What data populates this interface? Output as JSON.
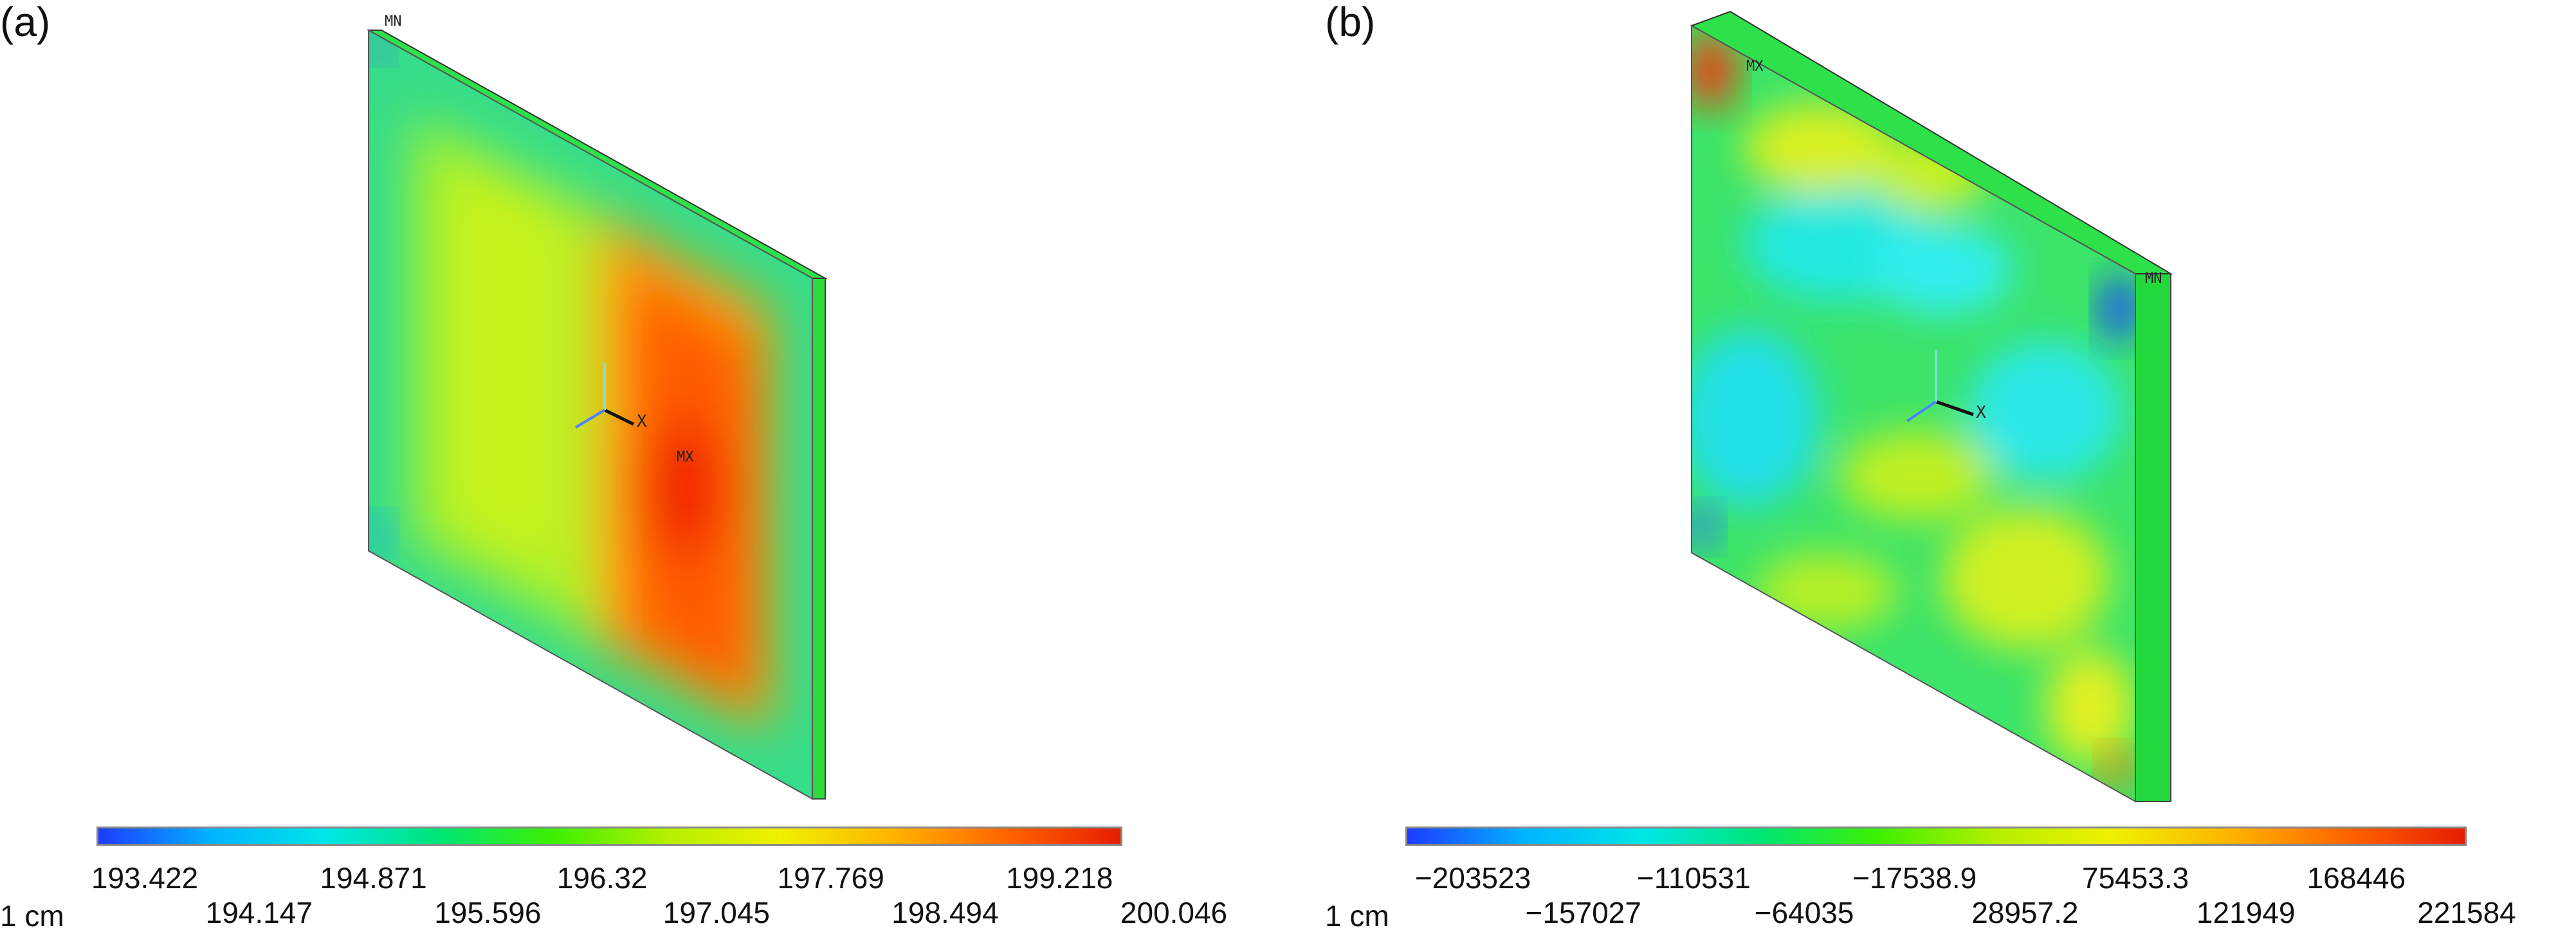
{
  "panels": [
    {
      "label": "(a)",
      "unit_label": "1 cm",
      "marker_min": "MN",
      "marker_max": "MX",
      "axis_label": "X",
      "colorbar_top_ticks": [
        "193.422",
        "194.871",
        "196.32",
        "197.769",
        "199.218"
      ],
      "colorbar_bottom_ticks": [
        "194.147",
        "195.596",
        "197.045",
        "198.494",
        "200.046"
      ]
    },
    {
      "label": "(b)",
      "unit_label": "1 cm",
      "marker_min": "MN",
      "marker_max": "MX",
      "axis_label": "X",
      "colorbar_top_ticks": [
        "−203523",
        "−110531",
        "−17538.9",
        "75453.3",
        "168446"
      ],
      "colorbar_bottom_ticks": [
        "−157027",
        "−64035",
        "28957.2",
        "121949",
        "221584"
      ]
    }
  ],
  "colors": {
    "scale": [
      "#1e3cff",
      "#00b4ff",
      "#00e6e6",
      "#00e676",
      "#3cf000",
      "#b4f000",
      "#f0f000",
      "#ffb400",
      "#ff6400",
      "#e61e00"
    ]
  }
}
